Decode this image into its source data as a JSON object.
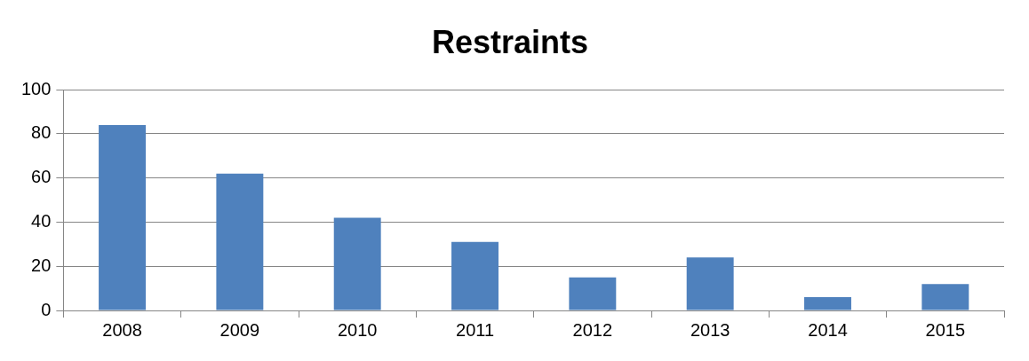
{
  "chart_data": {
    "type": "bar",
    "title": "Restraints",
    "categories": [
      "2008",
      "2009",
      "2010",
      "2011",
      "2012",
      "2013",
      "2014",
      "2015"
    ],
    "values": [
      84,
      62,
      42,
      31,
      15,
      24,
      6,
      12
    ],
    "color": "#4f81bd",
    "ylim": [
      0,
      100
    ],
    "yticks": [
      0,
      20,
      40,
      60,
      80,
      100
    ],
    "grid": "y",
    "legend": false
  }
}
